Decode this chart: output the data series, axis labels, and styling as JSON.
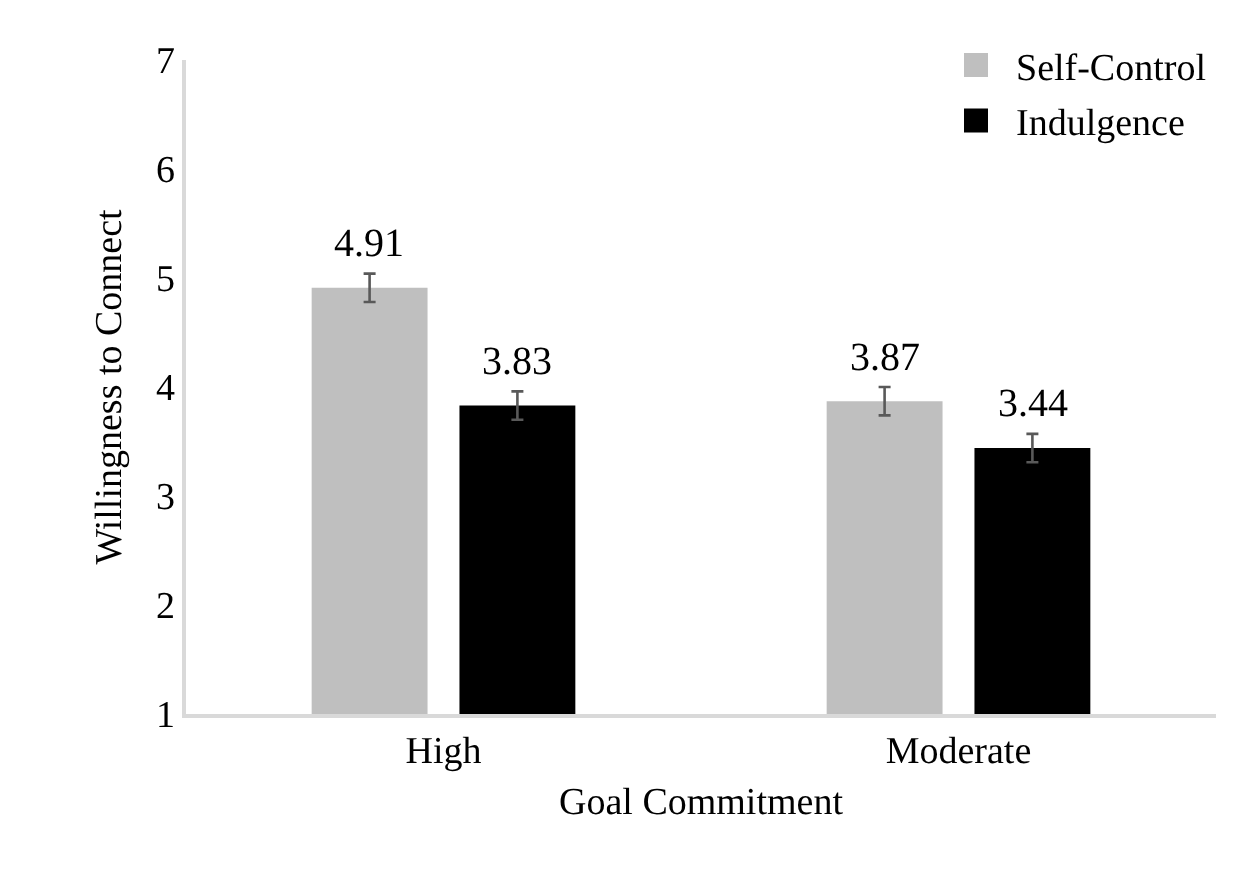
{
  "chart_data": {
    "type": "bar",
    "xlabel": "Goal Commitment",
    "ylabel": "Willingness to Connect",
    "categories": [
      "High",
      "Moderate"
    ],
    "series": [
      {
        "name": "Self-Control",
        "color": "#bfbfbf",
        "values": [
          4.91,
          3.87
        ],
        "errors": [
          0.13,
          0.13
        ]
      },
      {
        "name": "Indulgence",
        "color": "#000000",
        "values": [
          3.83,
          3.44
        ],
        "errors": [
          0.13,
          0.13
        ]
      }
    ],
    "ylim": [
      1,
      7
    ],
    "yticks": [
      1,
      2,
      3,
      4,
      5,
      6,
      7
    ],
    "grid": false,
    "legend": "top right",
    "data_labels": true
  }
}
